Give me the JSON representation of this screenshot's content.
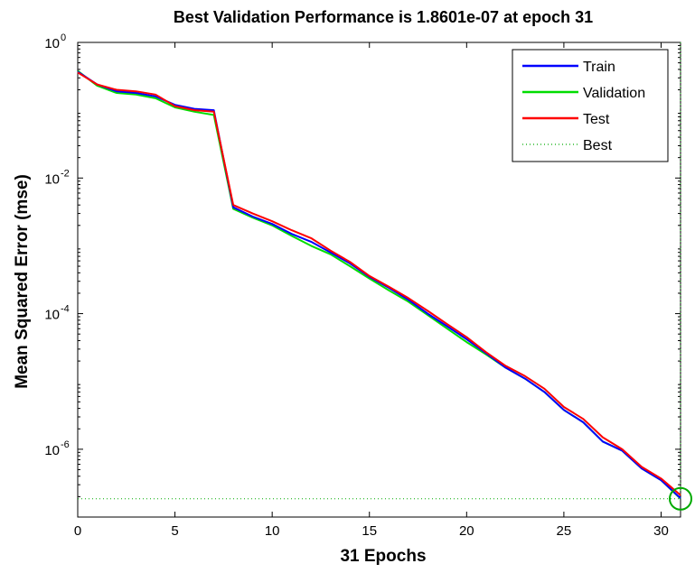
{
  "chart_data": {
    "type": "line",
    "title": "Best Validation Performance is 1.8601e-07 at epoch 31",
    "xlabel": "31 Epochs",
    "ylabel": "Mean Squared Error  (mse)",
    "xlim": [
      0,
      31
    ],
    "ylim": [
      1e-07,
      1
    ],
    "yscale": "log",
    "xticks": [
      0,
      5,
      10,
      15,
      20,
      25,
      30
    ],
    "yticks": [
      {
        "value": 1e-06,
        "base": "10",
        "exp": "-6"
      },
      {
        "value": 0.0001,
        "base": "10",
        "exp": "-4"
      },
      {
        "value": 0.01,
        "base": "10",
        "exp": "-2"
      },
      {
        "value": 1,
        "base": "10",
        "exp": "0"
      }
    ],
    "legend_position": "top-right",
    "x": [
      0,
      1,
      2,
      3,
      4,
      5,
      6,
      7,
      8,
      9,
      10,
      11,
      12,
      13,
      14,
      15,
      16,
      17,
      18,
      19,
      20,
      21,
      22,
      23,
      24,
      25,
      26,
      27,
      28,
      29,
      30,
      31
    ],
    "series": [
      {
        "name": "Train",
        "color": "#0000ff",
        "style": "solid",
        "values": [
          0.37,
          0.24,
          0.19,
          0.18,
          0.16,
          0.12,
          0.105,
          0.1,
          0.0037,
          0.0027,
          0.0021,
          0.0015,
          0.00115,
          0.0008,
          0.00055,
          0.00035,
          0.00024,
          0.00016,
          0.0001,
          6.5e-05,
          4.2e-05,
          2.6e-05,
          1.6e-05,
          1.1e-05,
          7e-06,
          3.8e-06,
          2.5e-06,
          1.3e-06,
          9.5e-07,
          5.2e-07,
          3.5e-07,
          1.9e-07
        ]
      },
      {
        "name": "Validation",
        "color": "#00dd00",
        "style": "solid",
        "values": [
          0.38,
          0.23,
          0.18,
          0.17,
          0.15,
          0.11,
          0.095,
          0.085,
          0.0035,
          0.0026,
          0.002,
          0.0014,
          0.001,
          0.00075,
          0.0005,
          0.00033,
          0.00022,
          0.00015,
          9.5e-05,
          6e-05,
          3.8e-05,
          2.5e-05,
          1.6e-05,
          1.1e-05,
          7e-06,
          3.8e-06,
          2.5e-06,
          1.3e-06,
          9.5e-07,
          5.2e-07,
          3.5e-07,
          1.8601e-07
        ]
      },
      {
        "name": "Test",
        "color": "#ff0000",
        "style": "solid",
        "values": [
          0.36,
          0.24,
          0.2,
          0.19,
          0.17,
          0.115,
          0.1,
          0.095,
          0.004,
          0.003,
          0.0023,
          0.0017,
          0.0013,
          0.00085,
          0.00058,
          0.00036,
          0.00025,
          0.00017,
          0.00011,
          7e-05,
          4.5e-05,
          2.7e-05,
          1.7e-05,
          1.2e-05,
          7.8e-06,
          4.2e-06,
          2.8e-06,
          1.5e-06,
          1e-06,
          5.5e-07,
          3.7e-07,
          2.1e-07
        ]
      }
    ],
    "best": {
      "name": "Best",
      "color": "#00aa00",
      "style": "dotted",
      "epoch": 31,
      "value": 1.8601e-07
    }
  }
}
